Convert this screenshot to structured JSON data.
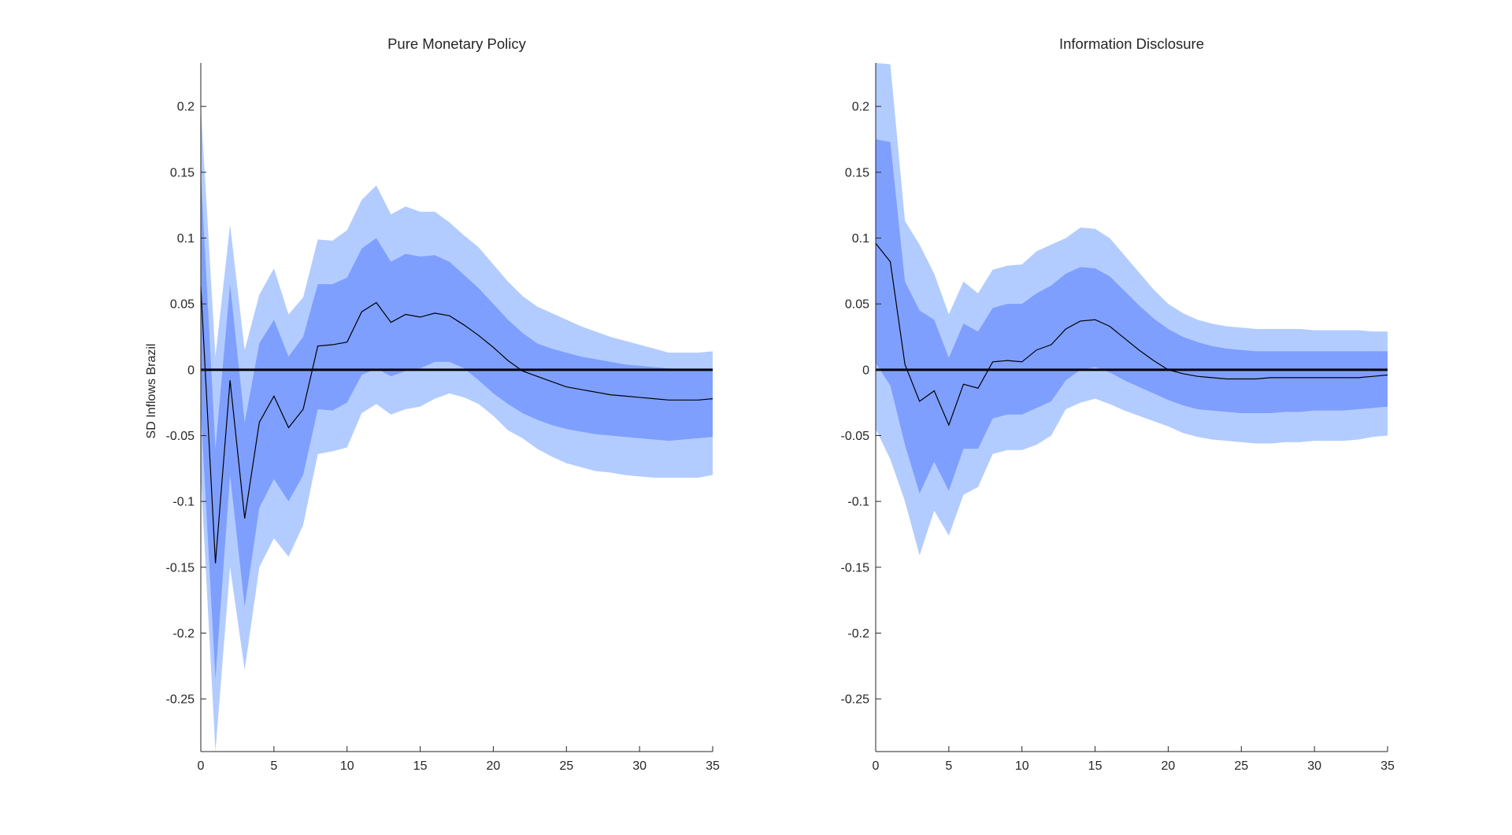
{
  "figure": {
    "ylabel": "SD Inflows Brazil",
    "colors": {
      "outer_band": "#b3ccff",
      "inner_band": "#7f9fff",
      "median_line": "#000000",
      "zero_line": "#000000",
      "axis": "#262626"
    }
  },
  "chart_data": [
    {
      "type": "area",
      "title": "Pure Monetary Policy",
      "xlabel": "",
      "ylabel": "SD Inflows Brazil",
      "xlim": [
        0,
        35
      ],
      "ylim": [
        -0.29,
        0.233
      ],
      "xticks": [
        0,
        5,
        10,
        15,
        20,
        25,
        30,
        35
      ],
      "xtick_labels": [
        "0",
        "5",
        "10",
        "15",
        "20",
        "25",
        "30",
        "35"
      ],
      "yticks": [
        -0.25,
        -0.2,
        -0.15,
        -0.1,
        -0.05,
        0,
        0.05,
        0.1,
        0.15,
        0.2
      ],
      "ytick_labels": [
        "-0.25",
        "-0.2",
        "-0.15",
        "-0.1",
        "-0.05",
        "0",
        "0.05",
        "0.1",
        "0.15",
        "0.2"
      ],
      "x": [
        0,
        1,
        2,
        3,
        4,
        5,
        6,
        7,
        8,
        9,
        10,
        11,
        12,
        13,
        14,
        15,
        16,
        17,
        18,
        19,
        20,
        21,
        22,
        23,
        24,
        25,
        26,
        27,
        28,
        29,
        30,
        31,
        32,
        33,
        34,
        35
      ],
      "series": [
        {
          "name": "outer_upper",
          "values": [
            0.2,
            0.01,
            0.11,
            0.015,
            0.057,
            0.077,
            0.042,
            0.055,
            0.099,
            0.098,
            0.106,
            0.129,
            0.14,
            0.118,
            0.124,
            0.12,
            0.12,
            0.112,
            0.102,
            0.093,
            0.08,
            0.067,
            0.056,
            0.048,
            0.043,
            0.038,
            0.033,
            0.029,
            0.025,
            0.022,
            0.019,
            0.016,
            0.013,
            0.013,
            0.013,
            0.014
          ]
        },
        {
          "name": "inner_upper",
          "values": [
            0.15,
            -0.06,
            0.065,
            -0.04,
            0.02,
            0.038,
            0.01,
            0.025,
            0.065,
            0.065,
            0.07,
            0.092,
            0.1,
            0.082,
            0.088,
            0.086,
            0.087,
            0.082,
            0.072,
            0.062,
            0.05,
            0.038,
            0.028,
            0.02,
            0.016,
            0.013,
            0.01,
            0.008,
            0.006,
            0.004,
            0.003,
            0.002,
            0.001,
            0.0,
            0.0,
            0.0
          ]
        },
        {
          "name": "median",
          "values": [
            0.063,
            -0.147,
            -0.008,
            -0.113,
            -0.04,
            -0.02,
            -0.044,
            -0.03,
            0.018,
            0.019,
            0.021,
            0.044,
            0.051,
            0.036,
            0.042,
            0.04,
            0.043,
            0.041,
            0.034,
            0.026,
            0.017,
            0.007,
            -0.001,
            -0.005,
            -0.009,
            -0.013,
            -0.015,
            -0.017,
            -0.019,
            -0.02,
            -0.021,
            -0.022,
            -0.023,
            -0.023,
            -0.023,
            -0.022
          ]
        },
        {
          "name": "inner_lower",
          "values": [
            -0.03,
            -0.235,
            -0.08,
            -0.18,
            -0.105,
            -0.083,
            -0.1,
            -0.08,
            -0.03,
            -0.031,
            -0.025,
            -0.004,
            0.001,
            -0.005,
            -0.001,
            0.001,
            0.006,
            0.006,
            0.001,
            -0.008,
            -0.018,
            -0.026,
            -0.033,
            -0.038,
            -0.042,
            -0.045,
            -0.047,
            -0.049,
            -0.05,
            -0.051,
            -0.052,
            -0.053,
            -0.054,
            -0.053,
            -0.052,
            -0.051
          ]
        },
        {
          "name": "outer_lower",
          "values": [
            -0.08,
            -0.29,
            -0.15,
            -0.228,
            -0.15,
            -0.128,
            -0.142,
            -0.118,
            -0.064,
            -0.062,
            -0.059,
            -0.033,
            -0.026,
            -0.034,
            -0.03,
            -0.028,
            -0.022,
            -0.018,
            -0.021,
            -0.026,
            -0.035,
            -0.046,
            -0.052,
            -0.06,
            -0.066,
            -0.071,
            -0.074,
            -0.077,
            -0.078,
            -0.08,
            -0.081,
            -0.082,
            -0.082,
            -0.082,
            -0.082,
            -0.08
          ]
        }
      ]
    },
    {
      "type": "area",
      "title": "Information Disclosure",
      "xlabel": "",
      "ylabel": "",
      "xlim": [
        0,
        35
      ],
      "ylim": [
        -0.29,
        0.233
      ],
      "xticks": [
        0,
        5,
        10,
        15,
        20,
        25,
        30,
        35
      ],
      "xtick_labels": [
        "0",
        "5",
        "10",
        "15",
        "20",
        "25",
        "30",
        "35"
      ],
      "yticks": [
        -0.25,
        -0.2,
        -0.15,
        -0.1,
        -0.05,
        0,
        0.05,
        0.1,
        0.15,
        0.2
      ],
      "ytick_labels": [
        "-0.25",
        "-0.2",
        "-0.15",
        "-0.1",
        "-0.05",
        "0",
        "0.05",
        "0.1",
        "0.15",
        "0.2"
      ],
      "x": [
        0,
        1,
        2,
        3,
        4,
        5,
        6,
        7,
        8,
        9,
        10,
        11,
        12,
        13,
        14,
        15,
        16,
        17,
        18,
        19,
        20,
        21,
        22,
        23,
        24,
        25,
        26,
        27,
        28,
        29,
        30,
        31,
        32,
        33,
        34,
        35
      ],
      "series": [
        {
          "name": "outer_upper",
          "values": [
            0.233,
            0.232,
            0.113,
            0.095,
            0.073,
            0.042,
            0.067,
            0.058,
            0.076,
            0.079,
            0.08,
            0.09,
            0.095,
            0.1,
            0.108,
            0.107,
            0.1,
            0.087,
            0.074,
            0.061,
            0.05,
            0.043,
            0.038,
            0.035,
            0.033,
            0.032,
            0.031,
            0.031,
            0.031,
            0.031,
            0.03,
            0.03,
            0.03,
            0.03,
            0.029,
            0.029
          ]
        },
        {
          "name": "inner_upper",
          "values": [
            0.175,
            0.173,
            0.067,
            0.045,
            0.038,
            0.009,
            0.035,
            0.029,
            0.047,
            0.05,
            0.05,
            0.058,
            0.064,
            0.073,
            0.078,
            0.077,
            0.071,
            0.06,
            0.049,
            0.039,
            0.031,
            0.025,
            0.021,
            0.018,
            0.016,
            0.015,
            0.014,
            0.014,
            0.014,
            0.014,
            0.014,
            0.014,
            0.014,
            0.014,
            0.014,
            0.014
          ]
        },
        {
          "name": "median",
          "values": [
            0.096,
            0.082,
            0.004,
            -0.024,
            -0.016,
            -0.042,
            -0.011,
            -0.014,
            0.006,
            0.007,
            0.006,
            0.015,
            0.019,
            0.031,
            0.037,
            0.038,
            0.033,
            0.024,
            0.015,
            0.007,
            0.0,
            -0.003,
            -0.005,
            -0.006,
            -0.007,
            -0.007,
            -0.007,
            -0.006,
            -0.006,
            -0.006,
            -0.006,
            -0.006,
            -0.006,
            -0.006,
            -0.005,
            -0.004
          ]
        },
        {
          "name": "inner_lower",
          "values": [
            0.005,
            -0.012,
            -0.057,
            -0.094,
            -0.07,
            -0.092,
            -0.06,
            -0.06,
            -0.037,
            -0.034,
            -0.034,
            -0.029,
            -0.024,
            -0.008,
            0.0,
            0.002,
            -0.002,
            -0.008,
            -0.013,
            -0.018,
            -0.023,
            -0.027,
            -0.03,
            -0.031,
            -0.032,
            -0.033,
            -0.033,
            -0.033,
            -0.032,
            -0.032,
            -0.031,
            -0.031,
            -0.031,
            -0.03,
            -0.029,
            -0.028
          ]
        },
        {
          "name": "outer_lower",
          "values": [
            -0.045,
            -0.068,
            -0.1,
            -0.141,
            -0.107,
            -0.126,
            -0.095,
            -0.089,
            -0.064,
            -0.061,
            -0.061,
            -0.057,
            -0.05,
            -0.03,
            -0.025,
            -0.022,
            -0.026,
            -0.031,
            -0.035,
            -0.039,
            -0.043,
            -0.048,
            -0.051,
            -0.053,
            -0.054,
            -0.055,
            -0.056,
            -0.056,
            -0.055,
            -0.055,
            -0.054,
            -0.054,
            -0.054,
            -0.053,
            -0.051,
            -0.05
          ]
        }
      ]
    }
  ]
}
